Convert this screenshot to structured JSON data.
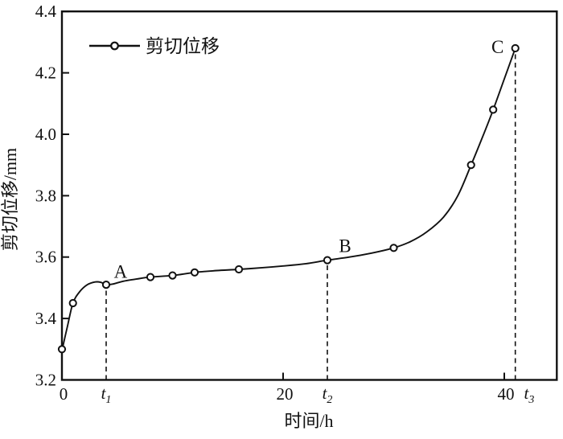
{
  "colors": {
    "ink": "#111111",
    "background": "#ffffff",
    "marker_fill": "#ffffff"
  },
  "chart_data": {
    "type": "line",
    "title": "",
    "xlabel": "时间/h",
    "ylabel": "剪切位移/mm",
    "xlim": [
      0,
      44.75
    ],
    "ylim": [
      3.2,
      4.4
    ],
    "grid": false,
    "xticks": {
      "values": [
        0,
        20,
        40
      ],
      "labels": [
        "0",
        "20",
        "40"
      ]
    },
    "yticks": {
      "values": [
        3.2,
        3.4,
        3.6,
        3.8,
        4.0,
        4.2,
        4.4
      ],
      "labels": [
        "3.2",
        "3.4",
        "3.6",
        "3.8",
        "4.0",
        "4.2",
        "4.4"
      ]
    },
    "legend": {
      "position": "top-left",
      "entries": [
        {
          "label": "剪切位移",
          "marker": "open-circle",
          "line": "solid",
          "color": "#111111"
        }
      ]
    },
    "series": [
      {
        "name": "剪切位移",
        "x": [
          0,
          1,
          4,
          8,
          10,
          12,
          16,
          24,
          30,
          37,
          39,
          41
        ],
        "y": [
          3.3,
          3.45,
          3.51,
          3.535,
          3.54,
          3.55,
          3.56,
          3.59,
          3.63,
          3.9,
          4.08,
          4.28
        ]
      }
    ],
    "curve_anchors": [
      [
        0,
        3.295
      ],
      [
        0.5,
        3.375
      ],
      [
        1,
        3.45
      ],
      [
        1.6,
        3.487
      ],
      [
        2.3,
        3.51
      ],
      [
        3,
        3.519
      ],
      [
        3.5,
        3.518
      ],
      [
        4,
        3.51
      ],
      [
        4.6,
        3.512
      ],
      [
        5.5,
        3.521
      ],
      [
        7,
        3.53
      ],
      [
        8,
        3.535
      ],
      [
        10,
        3.54
      ],
      [
        12,
        3.55
      ],
      [
        14,
        3.556
      ],
      [
        16,
        3.56
      ],
      [
        18,
        3.565
      ],
      [
        20,
        3.571
      ],
      [
        22,
        3.578
      ],
      [
        24,
        3.59
      ],
      [
        26,
        3.6
      ],
      [
        28,
        3.613
      ],
      [
        30,
        3.63
      ],
      [
        31.5,
        3.65
      ],
      [
        33,
        3.682
      ],
      [
        34.5,
        3.73
      ],
      [
        35.8,
        3.8
      ],
      [
        37,
        3.9
      ],
      [
        38,
        3.988
      ],
      [
        39,
        4.08
      ],
      [
        40,
        4.18
      ],
      [
        41,
        4.28
      ]
    ],
    "annotations": [
      {
        "text": "A",
        "x": 5.3,
        "y": 3.553
      },
      {
        "text": "B",
        "x": 25.6,
        "y": 3.637
      },
      {
        "text": "C",
        "x": 39.4,
        "y": 4.285
      }
    ],
    "reference_lines": [
      {
        "label": "t1",
        "label_main": "t",
        "label_sub": "1",
        "x": 4,
        "y_top": 3.51,
        "label_x": 4
      },
      {
        "label": "t2",
        "label_main": "t",
        "label_sub": "2",
        "x": 24,
        "y_top": 3.59,
        "label_x": 24
      },
      {
        "label": "t3",
        "label_main": "t",
        "label_sub": "3",
        "x": 41,
        "y_top": 4.28,
        "label_x": 42.25
      }
    ]
  }
}
